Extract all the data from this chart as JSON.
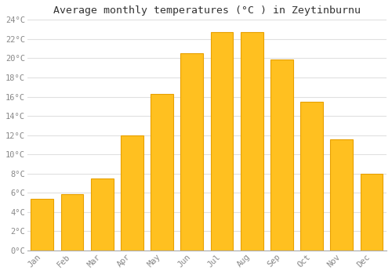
{
  "title": "Average monthly temperatures (°C ) in Zeytinburnu",
  "months": [
    "Jan",
    "Feb",
    "Mar",
    "Apr",
    "May",
    "Jun",
    "Jul",
    "Aug",
    "Sep",
    "Oct",
    "Nov",
    "Dec"
  ],
  "values": [
    5.4,
    5.9,
    7.5,
    12.0,
    16.3,
    20.5,
    22.7,
    22.7,
    19.9,
    15.5,
    11.6,
    8.0
  ],
  "bar_color": "#FFC020",
  "bar_edge_color": "#E8A000",
  "ylim": [
    0,
    24
  ],
  "yticks": [
    0,
    2,
    4,
    6,
    8,
    10,
    12,
    14,
    16,
    18,
    20,
    22,
    24
  ],
  "ytick_labels": [
    "0°C",
    "2°C",
    "4°C",
    "6°C",
    "8°C",
    "10°C",
    "12°C",
    "14°C",
    "16°C",
    "18°C",
    "20°C",
    "22°C",
    "24°C"
  ],
  "background_color": "#ffffff",
  "grid_color": "#e0e0e0",
  "title_fontsize": 9.5,
  "tick_fontsize": 7.5,
  "font_family": "monospace"
}
